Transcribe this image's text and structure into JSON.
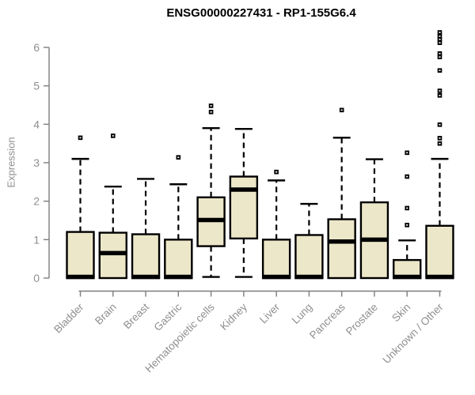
{
  "page": {
    "background": "#ffffff"
  },
  "chart_data": {
    "type": "box",
    "title": "ENSG00000227431 - RP1-155G6.4",
    "xlabel": "",
    "ylabel": "Expression",
    "ylim": [
      0,
      6.5
    ],
    "yticks": [
      0,
      1,
      2,
      3,
      4,
      5,
      6
    ],
    "grid": false,
    "legend": null,
    "categories": [
      "Bladder",
      "Brain",
      "Breast",
      "Gastric",
      "Hematopoietic cells",
      "Kidney",
      "Liver",
      "Lung",
      "Pancreas",
      "Prostate",
      "Skin",
      "Unknown / Other"
    ],
    "series": [
      {
        "category": "Bladder",
        "whisker_low": 0,
        "q1": 0,
        "median": 0.03,
        "q3": 1.2,
        "whisker_high": 3.1,
        "outliers": [
          3.65
        ]
      },
      {
        "category": "Brain",
        "whisker_low": 0,
        "q1": 0,
        "median": 0.65,
        "q3": 1.18,
        "whisker_high": 2.38,
        "outliers": [
          3.7
        ]
      },
      {
        "category": "Breast",
        "whisker_low": 0,
        "q1": 0,
        "median": 0.03,
        "q3": 1.14,
        "whisker_high": 2.58,
        "outliers": []
      },
      {
        "category": "Gastric",
        "whisker_low": 0,
        "q1": 0,
        "median": 0.03,
        "q3": 1.0,
        "whisker_high": 2.44,
        "outliers": [
          3.14
        ]
      },
      {
        "category": "Hematopoietic cells",
        "whisker_low": 0.03,
        "q1": 0.83,
        "median": 1.51,
        "q3": 2.1,
        "whisker_high": 3.9,
        "outliers": [
          4.32,
          4.48
        ]
      },
      {
        "category": "Kidney",
        "whisker_low": 0.03,
        "q1": 1.03,
        "median": 2.3,
        "q3": 2.64,
        "whisker_high": 3.88,
        "outliers": []
      },
      {
        "category": "Liver",
        "whisker_low": 0,
        "q1": 0,
        "median": 0.03,
        "q3": 1.0,
        "whisker_high": 2.54,
        "outliers": [
          2.76
        ]
      },
      {
        "category": "Lung",
        "whisker_low": 0,
        "q1": 0,
        "median": 0.03,
        "q3": 1.12,
        "whisker_high": 1.93,
        "outliers": []
      },
      {
        "category": "Pancreas",
        "whisker_low": 0,
        "q1": 0,
        "median": 0.95,
        "q3": 1.53,
        "whisker_high": 3.65,
        "outliers": [
          4.37
        ]
      },
      {
        "category": "Prostate",
        "whisker_low": 0,
        "q1": 0,
        "median": 1.0,
        "q3": 1.97,
        "whisker_high": 3.09,
        "outliers": []
      },
      {
        "category": "Skin",
        "whisker_low": 0,
        "q1": 0,
        "median": 0.03,
        "q3": 0.47,
        "whisker_high": 0.98,
        "outliers": [
          1.38,
          1.82,
          2.64,
          3.26
        ]
      },
      {
        "category": "Unknown / Other",
        "whisker_low": 0,
        "q1": 0,
        "median": 0.03,
        "q3": 1.36,
        "whisker_high": 3.1,
        "outliers": [
          3.5,
          3.64,
          3.99,
          4.75,
          4.87,
          5.4,
          5.75,
          5.84,
          6.12,
          6.21,
          6.29,
          6.39
        ]
      }
    ],
    "colors": {
      "box_fill": "#ece7c9",
      "box_border": "#000000",
      "median": "#000000",
      "whisker": "#000000",
      "axis": "#7d7d7d",
      "tick_label": "#8f8f8f",
      "title": "#000000"
    }
  }
}
